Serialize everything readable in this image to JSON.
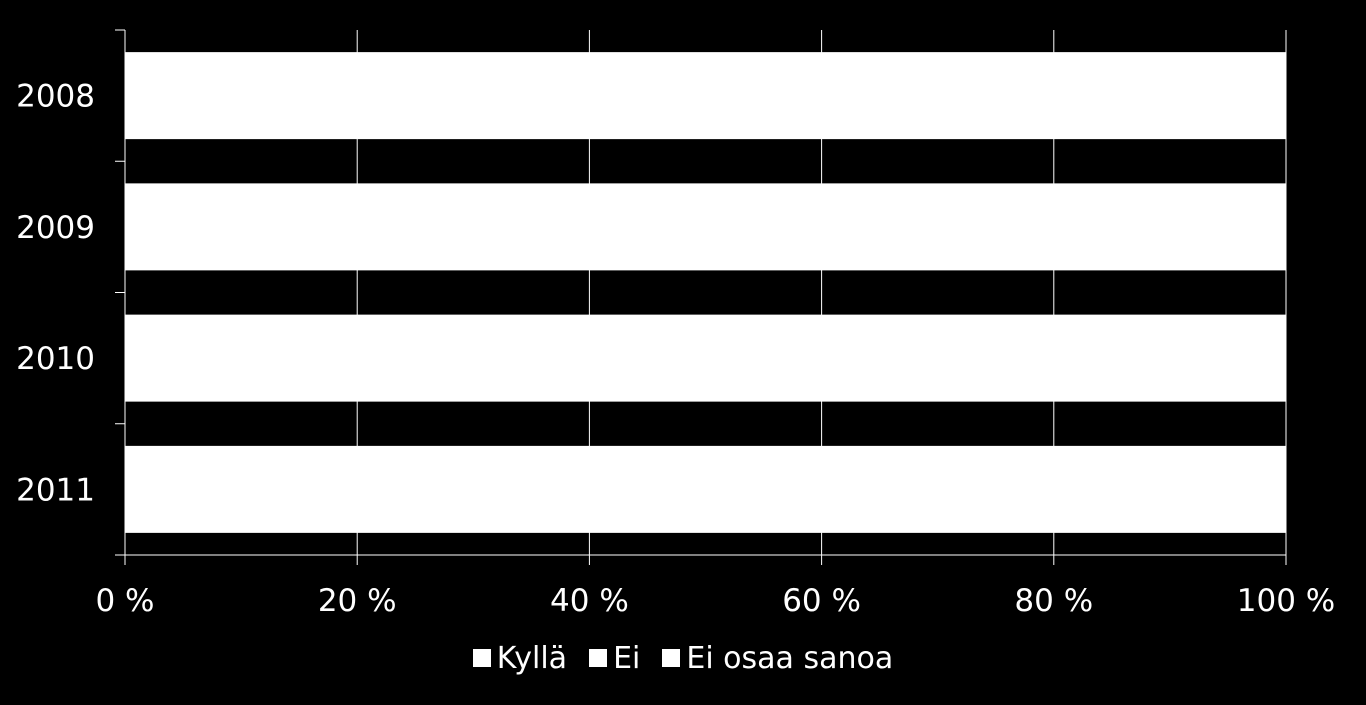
{
  "chart_data": {
    "type": "bar",
    "orientation": "horizontal",
    "stacked": "percent",
    "categories": [
      "2008",
      "2009",
      "2010",
      "2011"
    ],
    "series": [
      {
        "name": "Kyllä",
        "values": [
          100,
          100,
          100,
          100
        ],
        "color": "#ffffff"
      },
      {
        "name": "Ei",
        "values": [
          0,
          0,
          0,
          0
        ],
        "color": "#ffffff"
      },
      {
        "name": "Ei osaa sanoa",
        "values": [
          0,
          0,
          0,
          0
        ],
        "color": "#ffffff"
      }
    ],
    "x_ticks": [
      "0 %",
      "20 %",
      "40 %",
      "60 %",
      "80 %",
      "100 %"
    ],
    "xlim": [
      0,
      100
    ],
    "grid": true,
    "legend_position": "bottom",
    "background": "#000000"
  }
}
